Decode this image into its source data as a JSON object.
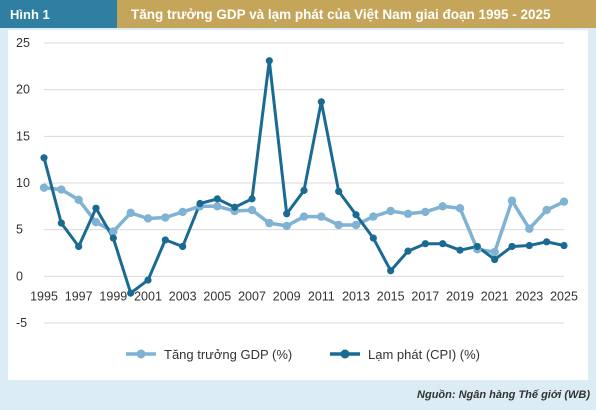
{
  "header": {
    "figure_label": "Hình 1",
    "title": "Tăng trưởng GDP và lạm phát của Việt Nam giai đoạn 1995 - 2025"
  },
  "source": "Nguồn: Ngân hàng Thế giới (WB)",
  "chart_data": {
    "type": "line",
    "title": "Tăng trưởng GDP và lạm phát của Việt Nam giai đoạn 1995 - 2025",
    "xlabel": "",
    "ylabel": "",
    "xlim": [
      1995,
      2025
    ],
    "ylim": [
      -5,
      25
    ],
    "yticks": [
      25,
      20,
      15,
      10,
      5,
      0,
      -5
    ],
    "xticks": [
      1995,
      1997,
      1999,
      2001,
      2003,
      2005,
      2007,
      2009,
      2011,
      2013,
      2015,
      2017,
      2019,
      2021,
      2023,
      2025
    ],
    "grid": "horizontal",
    "legend_position": "bottom",
    "x": [
      1995,
      1996,
      1997,
      1998,
      1999,
      2000,
      2001,
      2002,
      2003,
      2004,
      2005,
      2006,
      2007,
      2008,
      2009,
      2010,
      2011,
      2012,
      2013,
      2014,
      2015,
      2016,
      2017,
      2018,
      2019,
      2020,
      2021,
      2022,
      2023,
      2024,
      2025
    ],
    "series": [
      {
        "name": "Tăng trưởng GDP (%)",
        "color": "#7fb2d3",
        "values": [
          9.5,
          9.3,
          8.2,
          5.8,
          4.8,
          6.8,
          6.2,
          6.3,
          6.9,
          7.5,
          7.5,
          7.0,
          7.1,
          5.7,
          5.4,
          6.4,
          6.4,
          5.5,
          5.5,
          6.4,
          7.0,
          6.7,
          6.9,
          7.5,
          7.3,
          2.9,
          2.6,
          8.1,
          5.1,
          7.1,
          8.0
        ]
      },
      {
        "name": "Lạm phát (CPI) (%)",
        "color": "#1a6a93",
        "values": [
          12.7,
          5.7,
          3.2,
          7.3,
          4.1,
          -1.8,
          -0.4,
          3.9,
          3.2,
          7.8,
          8.3,
          7.4,
          8.3,
          23.1,
          6.7,
          9.2,
          18.7,
          9.1,
          6.6,
          4.1,
          0.6,
          2.7,
          3.5,
          3.5,
          2.8,
          3.2,
          1.8,
          3.2,
          3.3,
          3.7,
          3.3
        ]
      }
    ]
  }
}
